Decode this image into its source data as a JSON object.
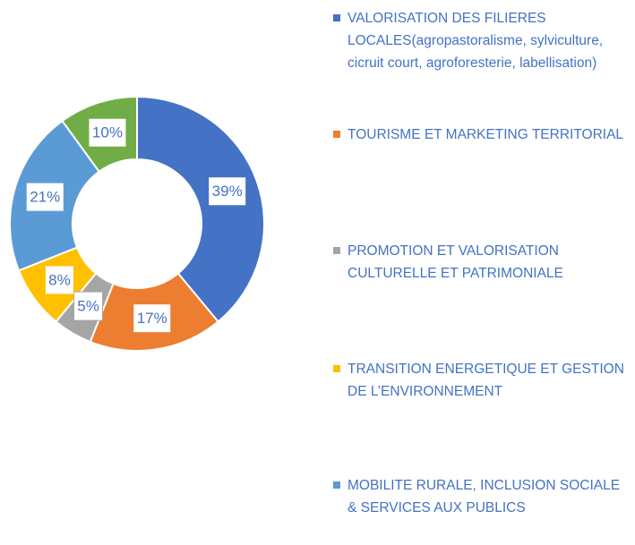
{
  "chart_data": {
    "type": "donut",
    "categories": [
      "VALORISATION DES FILIERES LOCALES(agropastoralisme, sylviculture, cicruit court, agroforesterie, labellisation)",
      "TOURISME ET MARKETING TERRITORIAL",
      "PROMOTION ET VALORISATION CULTURELLE ET PATRIMONIALE",
      "TRANSITION ENERGETIQUE ET GESTION DE L’ENVIRONNEMENT",
      "MOBILITE RURALE, INCLUSION SOCIALE & SERVICES AUX PUBLICS",
      null
    ],
    "values": [
      39,
      17,
      5,
      8,
      21,
      10
    ],
    "value_labels": [
      "39%",
      "17%",
      "5%",
      "8%",
      "21%",
      "10%"
    ],
    "colors": [
      "#4472c4",
      "#ed7d31",
      "#a5a5a5",
      "#ffc000",
      "#5b9bd5",
      "#70ad47"
    ],
    "legend": "right"
  }
}
